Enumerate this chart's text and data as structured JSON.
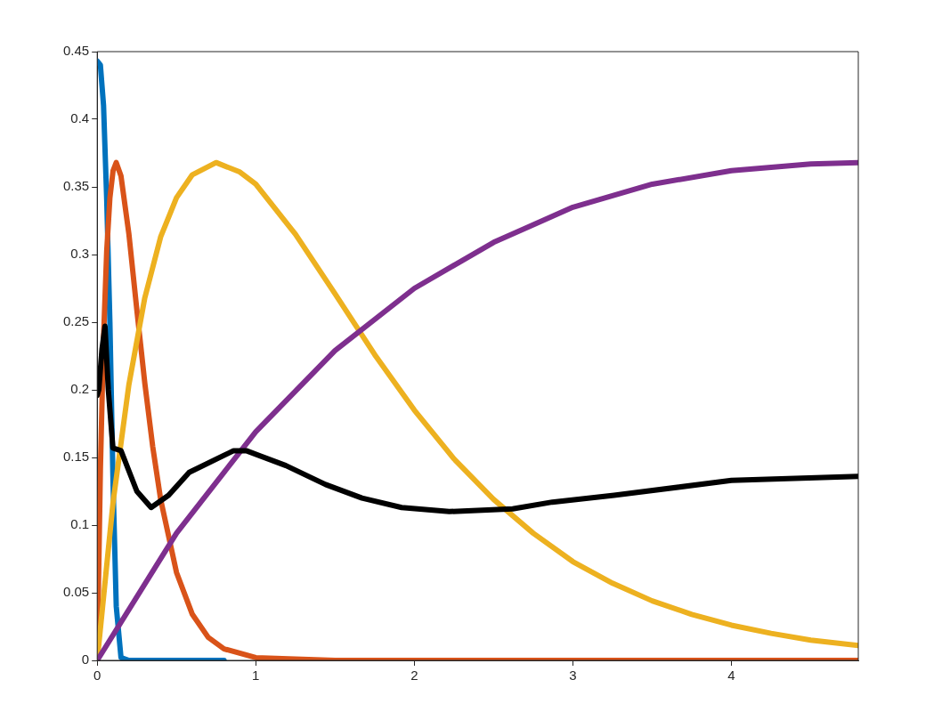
{
  "chart_data": {
    "type": "line",
    "xlim": [
      0,
      4.8
    ],
    "ylim": [
      0,
      0.45
    ],
    "xticks": [
      0,
      1,
      2,
      3,
      4
    ],
    "yticks": [
      0,
      0.05,
      0.1,
      0.15,
      0.2,
      0.25,
      0.3,
      0.35,
      0.4,
      0.45
    ],
    "grid": false,
    "legend": false,
    "marker": "none",
    "line_style": "solid",
    "series": [
      {
        "color": "#0072bd",
        "x": [
          0,
          0.02,
          0.04,
          0.06,
          0.08,
          0.1,
          0.12,
          0.15,
          0.2,
          0.5,
          0.8
        ],
        "values": [
          0.443,
          0.44,
          0.41,
          0.34,
          0.25,
          0.13,
          0.04,
          0.002,
          0,
          0,
          0
        ]
      },
      {
        "color": "#d95319",
        "x": [
          0,
          0.02,
          0.04,
          0.06,
          0.08,
          0.1,
          0.12,
          0.15,
          0.2,
          0.25,
          0.3,
          0.35,
          0.4,
          0.5,
          0.6,
          0.7,
          0.8,
          1,
          1.5,
          2,
          3,
          4,
          4.8
        ],
        "values": [
          0,
          0.141,
          0.239,
          0.303,
          0.342,
          0.362,
          0.368,
          0.358,
          0.315,
          0.259,
          0.205,
          0.158,
          0.119,
          0.065,
          0.034,
          0.017,
          0.0085,
          0.002,
          0,
          0,
          0,
          0,
          0
        ]
      },
      {
        "color": "#edb120",
        "x": [
          0,
          0.1,
          0.2,
          0.3,
          0.4,
          0.5,
          0.6,
          0.75,
          0.9,
          1,
          1.25,
          1.5,
          1.75,
          2,
          2.25,
          2.5,
          2.75,
          3,
          3.25,
          3.5,
          3.75,
          4,
          4.25,
          4.5,
          4.8
        ],
        "values": [
          0,
          0.117,
          0.204,
          0.268,
          0.313,
          0.342,
          0.359,
          0.368,
          0.361,
          0.352,
          0.315,
          0.271,
          0.226,
          0.185,
          0.149,
          0.119,
          0.094,
          0.073,
          0.057,
          0.044,
          0.034,
          0.026,
          0.02,
          0.015,
          0.011
        ]
      },
      {
        "color": "#7e2f8e",
        "x": [
          0,
          0.5,
          1,
          1.5,
          2,
          2.5,
          3,
          3.5,
          4,
          4.5,
          4.8
        ],
        "values": [
          0,
          0.094,
          0.169,
          0.229,
          0.275,
          0.309,
          0.335,
          0.352,
          0.362,
          0.367,
          0.368
        ]
      },
      {
        "color": "#000000",
        "x": [
          0,
          0.01,
          0.03,
          0.049,
          0.07,
          0.099,
          0.15,
          0.25,
          0.34,
          0.45,
          0.58,
          0.86,
          0.94,
          1.19,
          1.44,
          1.67,
          1.92,
          2.22,
          2.62,
          2.87,
          3.26,
          4,
          4.8
        ],
        "values": [
          0.196,
          0.2,
          0.23,
          0.247,
          0.2,
          0.157,
          0.155,
          0.125,
          0.113,
          0.122,
          0.139,
          0.155,
          0.155,
          0.144,
          0.13,
          0.12,
          0.113,
          0.11,
          0.112,
          0.117,
          0.122,
          0.133,
          0.136
        ]
      }
    ]
  }
}
